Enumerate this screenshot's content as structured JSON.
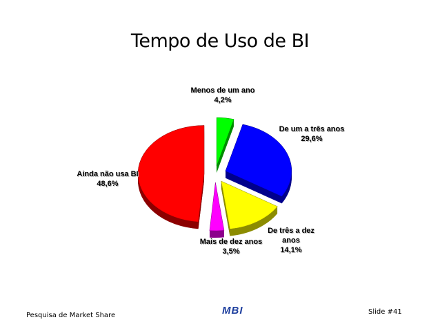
{
  "chart_data": {
    "type": "pie",
    "title": "Tempo de Uso de BI",
    "categories": [
      "Menos de um ano",
      "De um a três anos",
      "De três a dez anos",
      "Mais de dez anos",
      "Ainda não usa BI"
    ],
    "values": [
      4.2,
      29.6,
      14.1,
      3.5,
      48.6
    ],
    "value_labels": [
      "4,2%",
      "29,6%",
      "14,1%",
      "3,5%",
      "48,6%"
    ],
    "colors": [
      "#00ff00",
      "#0000ff",
      "#ffff00",
      "#ff00ff",
      "#ff0000"
    ]
  },
  "footer": {
    "left": "Pesquisa de Market Share",
    "logo": "MBI",
    "right": "Slide #41"
  }
}
